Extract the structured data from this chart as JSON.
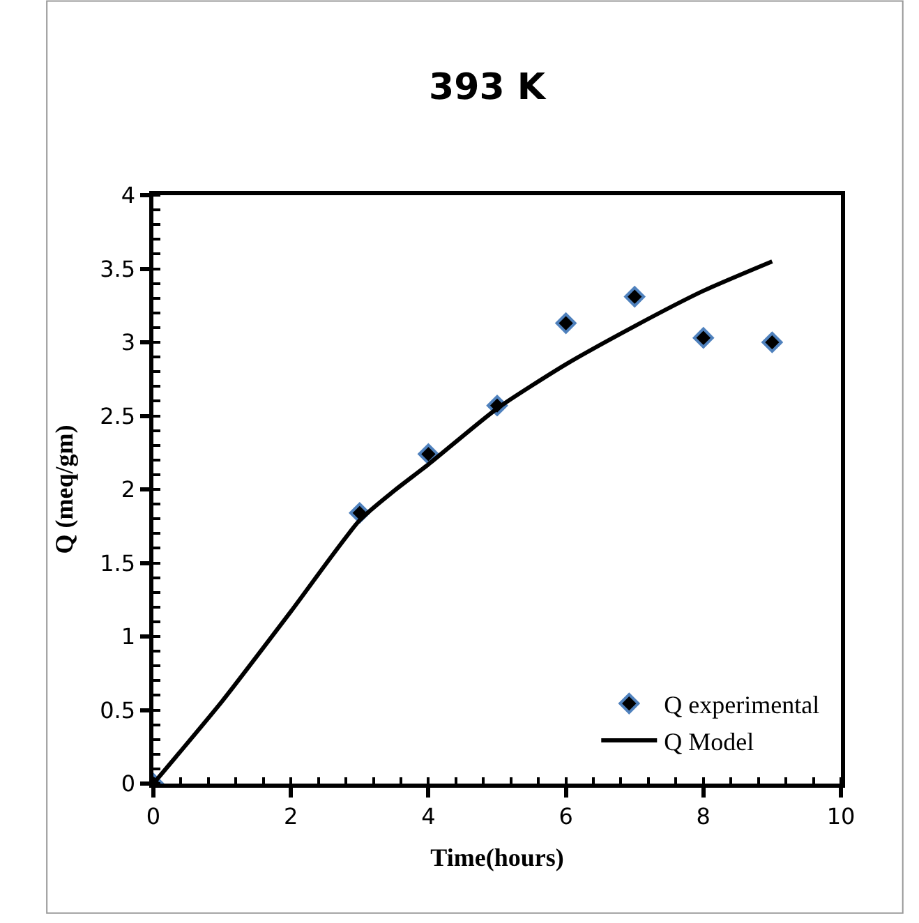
{
  "chart_data": {
    "type": "scatter",
    "title": "393 K",
    "xlabel": "Time(hours)",
    "ylabel": "Q (meq/gm)",
    "xlim": [
      0,
      10
    ],
    "xticks": [
      0,
      2,
      4,
      6,
      8,
      10
    ],
    "ylim": [
      0,
      4
    ],
    "yticks": [
      0,
      {
        "value": 0.5,
        "label": "0.5"
      },
      1,
      {
        "value": 1.5,
        "label": "1.5"
      },
      2,
      {
        "value": 2.5,
        "label": "2.5"
      },
      3,
      {
        "value": 3.5,
        "label": "3.5"
      },
      4
    ],
    "legend": "bottom right",
    "series": [
      {
        "name": "Q experimental",
        "marker": "diamond",
        "color": "#000000",
        "x": [
          0,
          3,
          4,
          5,
          6,
          7,
          8,
          9
        ],
        "values": [
          0,
          1.84,
          2.24,
          2.57,
          3.13,
          3.31,
          3.03,
          3.0
        ]
      },
      {
        "name": "Q Model",
        "type": "line",
        "color": "#000000",
        "x": [
          0,
          1,
          2,
          3,
          3.5,
          4,
          5,
          6,
          7,
          8,
          9
        ],
        "values": [
          0,
          0.56,
          1.17,
          1.79,
          1.99,
          2.17,
          2.55,
          2.85,
          3.11,
          3.35,
          3.55
        ]
      }
    ]
  }
}
